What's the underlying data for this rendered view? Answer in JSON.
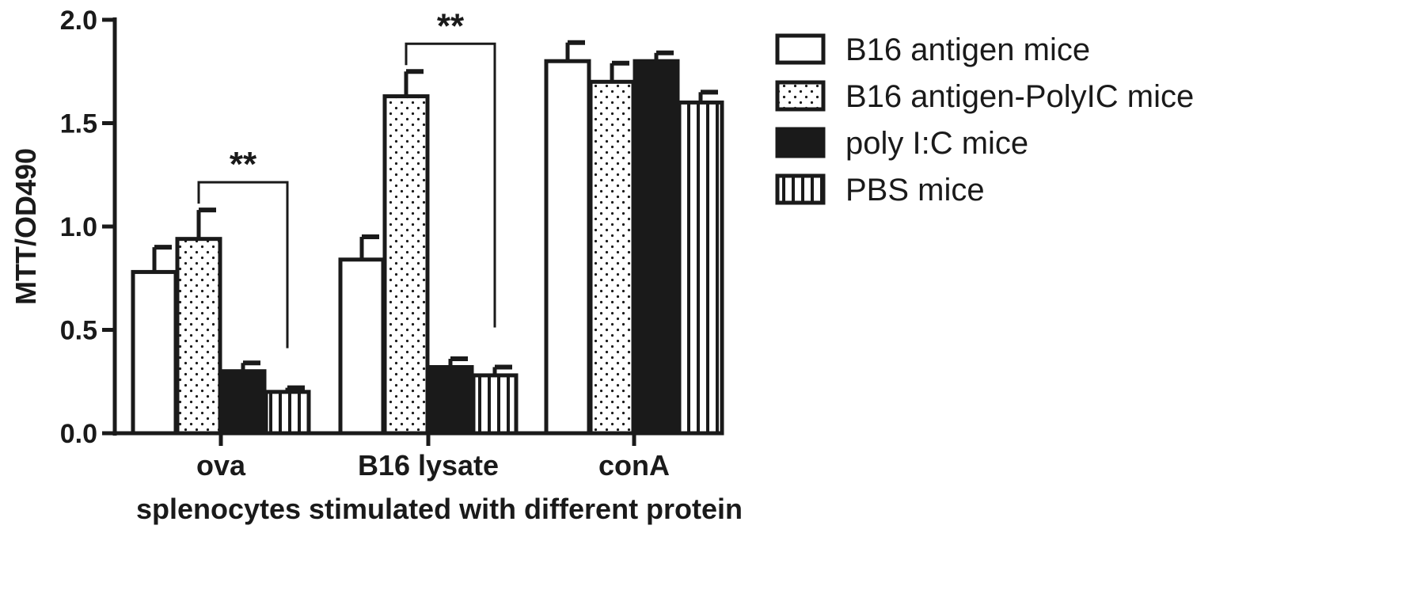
{
  "chart_data": {
    "type": "bar",
    "xlabel": "splenocytes stimulated with different protein",
    "ylabel": "MTT/OD490",
    "ylim": [
      0,
      2.0
    ],
    "yticks": [
      "0.0",
      "0.5",
      "1.0",
      "1.5",
      "2.0"
    ],
    "categories": [
      "ova",
      "B16 lysate",
      "conA"
    ],
    "series": [
      {
        "name": "B16 antigen mice",
        "pattern": "white",
        "values": [
          0.78,
          0.84,
          1.8
        ],
        "errors": [
          0.12,
          0.11,
          0.09
        ]
      },
      {
        "name": "B16 antigen-PolyIC  mice",
        "pattern": "dotted",
        "values": [
          0.94,
          1.63,
          1.7
        ],
        "errors": [
          0.14,
          0.12,
          0.09
        ]
      },
      {
        "name": "poly I:C mice",
        "pattern": "black",
        "values": [
          0.3,
          0.32,
          1.8
        ],
        "errors": [
          0.04,
          0.04,
          0.04
        ]
      },
      {
        "name": "PBS mice",
        "pattern": "vertical-stripes",
        "values": [
          0.2,
          0.28,
          1.6
        ],
        "errors": [
          0.02,
          0.04,
          0.05
        ]
      }
    ],
    "annotations": [
      {
        "label": "**",
        "category": "ova",
        "from_series": 1,
        "to_series": 3
      },
      {
        "label": "**",
        "category": "B16 lysate",
        "from_series": 1,
        "to_series": 3
      }
    ],
    "legend_position": "top-right",
    "grid": false,
    "colors": {
      "ink": "#1a1a1a",
      "background": "#ffffff"
    }
  }
}
